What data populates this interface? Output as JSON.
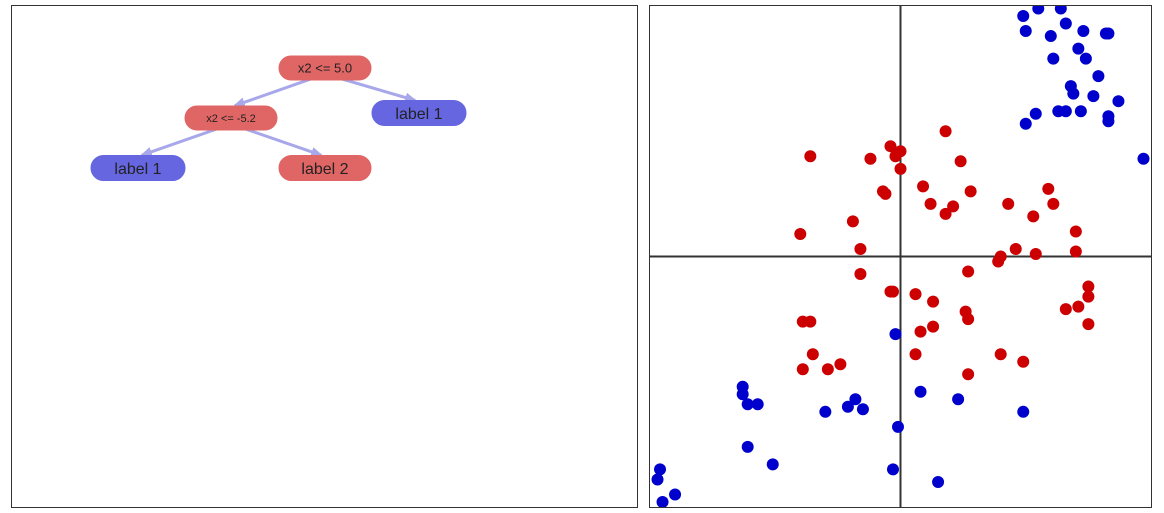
{
  "tree": {
    "nodes": [
      {
        "id": "root",
        "label": "x2 <= 5.0",
        "kind": "split"
      },
      {
        "id": "n1",
        "label": "x2 <= -5.2",
        "kind": "split"
      },
      {
        "id": "n2",
        "label": "label 1",
        "kind": "leaf",
        "class": 1
      },
      {
        "id": "n3",
        "label": "label 1",
        "kind": "leaf",
        "class": 1
      },
      {
        "id": "n4",
        "label": "label 2",
        "kind": "leaf",
        "class": 2
      }
    ],
    "edges": [
      {
        "from": "root",
        "to": "n1"
      },
      {
        "from": "root",
        "to": "n2"
      },
      {
        "from": "n1",
        "to": "n3"
      },
      {
        "from": "n1",
        "to": "n4"
      }
    ],
    "colors": {
      "split": "#e06666",
      "label_1": "#6666e0",
      "label_2": "#e06666",
      "edge": "#a7a7ea"
    }
  },
  "chart_data": {
    "type": "scatter",
    "title": "",
    "xlabel": "",
    "ylabel": "",
    "xlim": [
      -10,
      10
    ],
    "ylim": [
      -10,
      10
    ],
    "axes_at_origin": true,
    "grid": false,
    "legend": "none",
    "series": [
      {
        "color": "#0000cc",
        "points": [
          [
            4.9,
            9.6
          ],
          [
            5.5,
            9.9
          ],
          [
            6.4,
            9.9
          ],
          [
            6.6,
            9.3
          ],
          [
            7.3,
            9.0
          ],
          [
            8.2,
            8.9
          ],
          [
            8.3,
            8.9
          ],
          [
            5.0,
            9.0
          ],
          [
            6.0,
            8.8
          ],
          [
            6.1,
            7.9
          ],
          [
            7.1,
            8.3
          ],
          [
            7.4,
            7.9
          ],
          [
            7.9,
            7.2
          ],
          [
            6.8,
            6.8
          ],
          [
            6.9,
            6.5
          ],
          [
            7.7,
            6.4
          ],
          [
            6.3,
            5.8
          ],
          [
            6.6,
            5.8
          ],
          [
            7.2,
            5.8
          ],
          [
            8.7,
            6.2
          ],
          [
            5.4,
            5.7
          ],
          [
            5.0,
            5.3
          ],
          [
            8.3,
            5.6
          ],
          [
            8.3,
            5.4
          ],
          [
            9.7,
            3.9
          ],
          [
            -0.2,
            -3.1
          ],
          [
            0.8,
            -5.4
          ],
          [
            2.3,
            -5.7
          ],
          [
            4.9,
            -6.2
          ],
          [
            -0.1,
            -6.8
          ],
          [
            -0.3,
            -8.5
          ],
          [
            1.5,
            -9.0
          ],
          [
            -6.3,
            -5.2
          ],
          [
            -6.3,
            -5.5
          ],
          [
            -6.1,
            -5.9
          ],
          [
            -5.7,
            -5.9
          ],
          [
            -3.0,
            -6.2
          ],
          [
            -1.8,
            -5.7
          ],
          [
            -2.1,
            -6.0
          ],
          [
            -1.5,
            -6.1
          ],
          [
            -6.1,
            -7.6
          ],
          [
            -5.1,
            -8.3
          ],
          [
            -9.6,
            -8.5
          ],
          [
            -9.7,
            -8.9
          ],
          [
            -9.0,
            -9.5
          ],
          [
            -9.5,
            -9.8
          ]
        ]
      },
      {
        "color": "#cc0000",
        "points": [
          [
            1.8,
            5.0
          ],
          [
            -0.4,
            4.4
          ],
          [
            0.0,
            4.2
          ],
          [
            -0.2,
            4.0
          ],
          [
            -3.6,
            4.0
          ],
          [
            -1.2,
            3.9
          ],
          [
            2.4,
            3.8
          ],
          [
            0.0,
            3.5
          ],
          [
            0.9,
            2.8
          ],
          [
            -0.7,
            2.6
          ],
          [
            -0.6,
            2.5
          ],
          [
            2.8,
            2.6
          ],
          [
            1.2,
            2.1
          ],
          [
            4.3,
            2.1
          ],
          [
            5.9,
            2.7
          ],
          [
            6.1,
            2.1
          ],
          [
            2.1,
            2.0
          ],
          [
            1.8,
            1.7
          ],
          [
            5.3,
            1.6
          ],
          [
            -1.9,
            1.4
          ],
          [
            -4.0,
            0.9
          ],
          [
            7.0,
            1.0
          ],
          [
            -1.6,
            0.3
          ],
          [
            4.6,
            0.3
          ],
          [
            4.0,
            0.0
          ],
          [
            3.9,
            -0.2
          ],
          [
            5.4,
            0.1
          ],
          [
            7.0,
            0.2
          ],
          [
            2.7,
            -0.6
          ],
          [
            -1.6,
            -0.7
          ],
          [
            -0.3,
            -1.4
          ],
          [
            -0.4,
            -1.4
          ],
          [
            0.6,
            -1.5
          ],
          [
            1.3,
            -1.8
          ],
          [
            7.5,
            -1.2
          ],
          [
            7.5,
            -1.6
          ],
          [
            2.6,
            -2.2
          ],
          [
            2.7,
            -2.5
          ],
          [
            7.1,
            -2.0
          ],
          [
            6.6,
            -2.1
          ],
          [
            -3.9,
            -2.6
          ],
          [
            -3.6,
            -2.6
          ],
          [
            1.3,
            -2.8
          ],
          [
            0.8,
            -3.0
          ],
          [
            7.5,
            -2.7
          ],
          [
            -3.5,
            -3.9
          ],
          [
            0.6,
            -3.9
          ],
          [
            4.0,
            -3.9
          ],
          [
            4.9,
            -4.2
          ],
          [
            -3.9,
            -4.5
          ],
          [
            -2.9,
            -4.5
          ],
          [
            -2.4,
            -4.3
          ],
          [
            2.7,
            -4.7
          ]
        ]
      }
    ]
  }
}
